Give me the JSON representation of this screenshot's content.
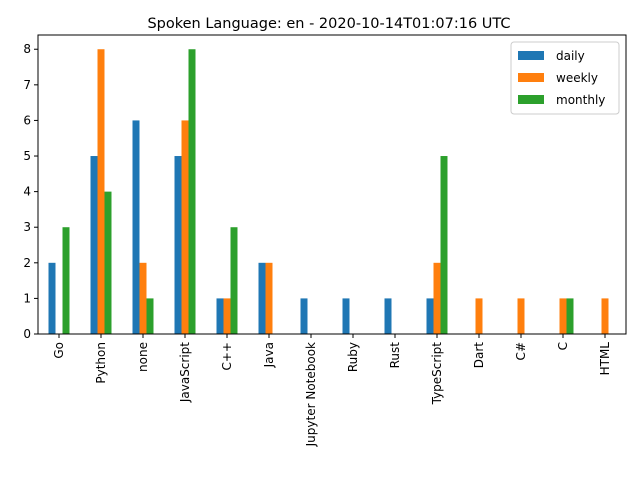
{
  "chart_data": {
    "type": "bar",
    "title": "Spoken Language: en - 2020-10-14T01:07:16 UTC",
    "xlabel": "",
    "ylabel": "",
    "ylim": [
      0,
      8.4
    ],
    "yticks": [
      "0",
      "1",
      "2",
      "3",
      "4",
      "5",
      "6",
      "7",
      "8"
    ],
    "categories": [
      "Go",
      "Python",
      "none",
      "JavaScript",
      "C++",
      "Java",
      "Jupyter Notebook",
      "Ruby",
      "Rust",
      "TypeScript",
      "Dart",
      "C#",
      "C",
      "HTML"
    ],
    "series": [
      {
        "name": "daily",
        "color": "#1f77b4",
        "values": [
          2,
          5,
          6,
          5,
          1,
          2,
          1,
          1,
          1,
          1,
          0,
          0,
          0,
          0
        ]
      },
      {
        "name": "weekly",
        "color": "#ff7f0e",
        "values": [
          0,
          8,
          2,
          6,
          1,
          2,
          0,
          0,
          0,
          2,
          1,
          1,
          1,
          1
        ]
      },
      {
        "name": "monthly",
        "color": "#2ca02c",
        "values": [
          3,
          4,
          1,
          8,
          3,
          0,
          0,
          0,
          0,
          5,
          0,
          0,
          1,
          0
        ]
      }
    ],
    "grid": false,
    "legend_position": "top-right"
  }
}
